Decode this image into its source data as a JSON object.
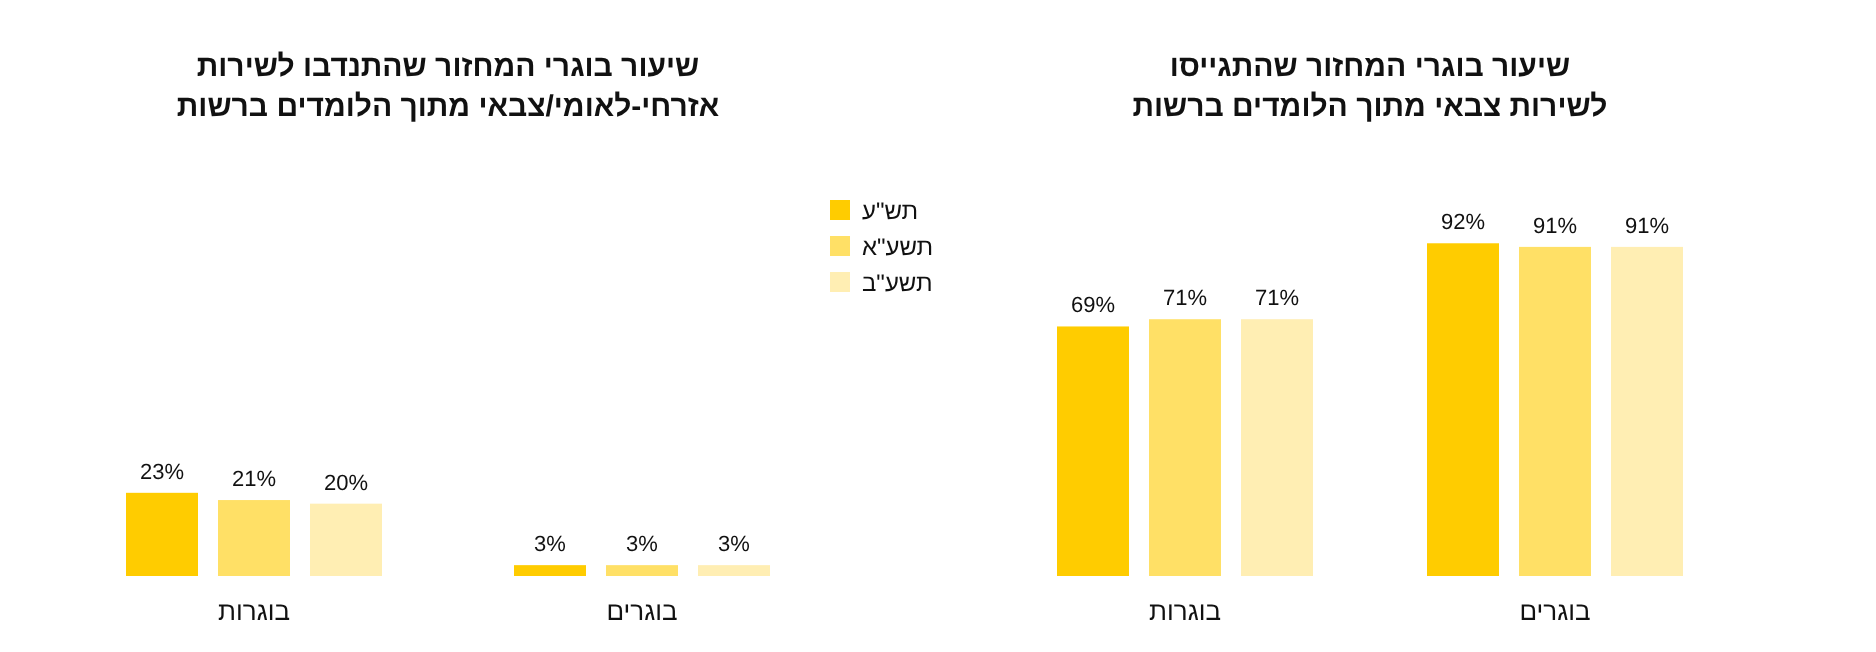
{
  "chart_data": [
    {
      "type": "bar",
      "title": "שיעור בוגרי המחזור שהתנדבו לשירות אזרחי-לאומי/צבאי מתוך הלומדים ברשות",
      "categories": [
        "בוגרות",
        "בוגרים"
      ],
      "series": [
        {
          "color": "#ffcc00",
          "values": [
            23,
            3
          ],
          "value_labels": [
            "23%",
            "3%"
          ]
        },
        {
          "color": "#ffe066",
          "values": [
            21,
            3
          ],
          "value_labels": [
            "21%",
            "3%"
          ]
        },
        {
          "color": "#ffeeb3",
          "values": [
            20,
            3
          ],
          "value_labels": [
            "20%",
            "3%"
          ]
        }
      ]
    },
    {
      "type": "bar",
      "title": "שיעור בוגרי המחזור שהתגייסו לשירות צבאי מתוך הלומדים ברשות",
      "categories": [
        "בוגרות",
        "בוגרים"
      ],
      "legend": "left",
      "series": [
        {
          "name": "תש\"ע",
          "color": "#ffcc00",
          "values": [
            69,
            92
          ],
          "value_labels": [
            "69%",
            "92%"
          ]
        },
        {
          "name": "תשע\"א",
          "color": "#ffe066",
          "values": [
            71,
            91
          ],
          "value_labels": [
            "71%",
            "91%"
          ]
        },
        {
          "name": "תשע\"ב",
          "color": "#ffeeb3",
          "values": [
            71,
            91
          ],
          "value_labels": [
            "71%",
            "91%"
          ]
        }
      ]
    }
  ]
}
